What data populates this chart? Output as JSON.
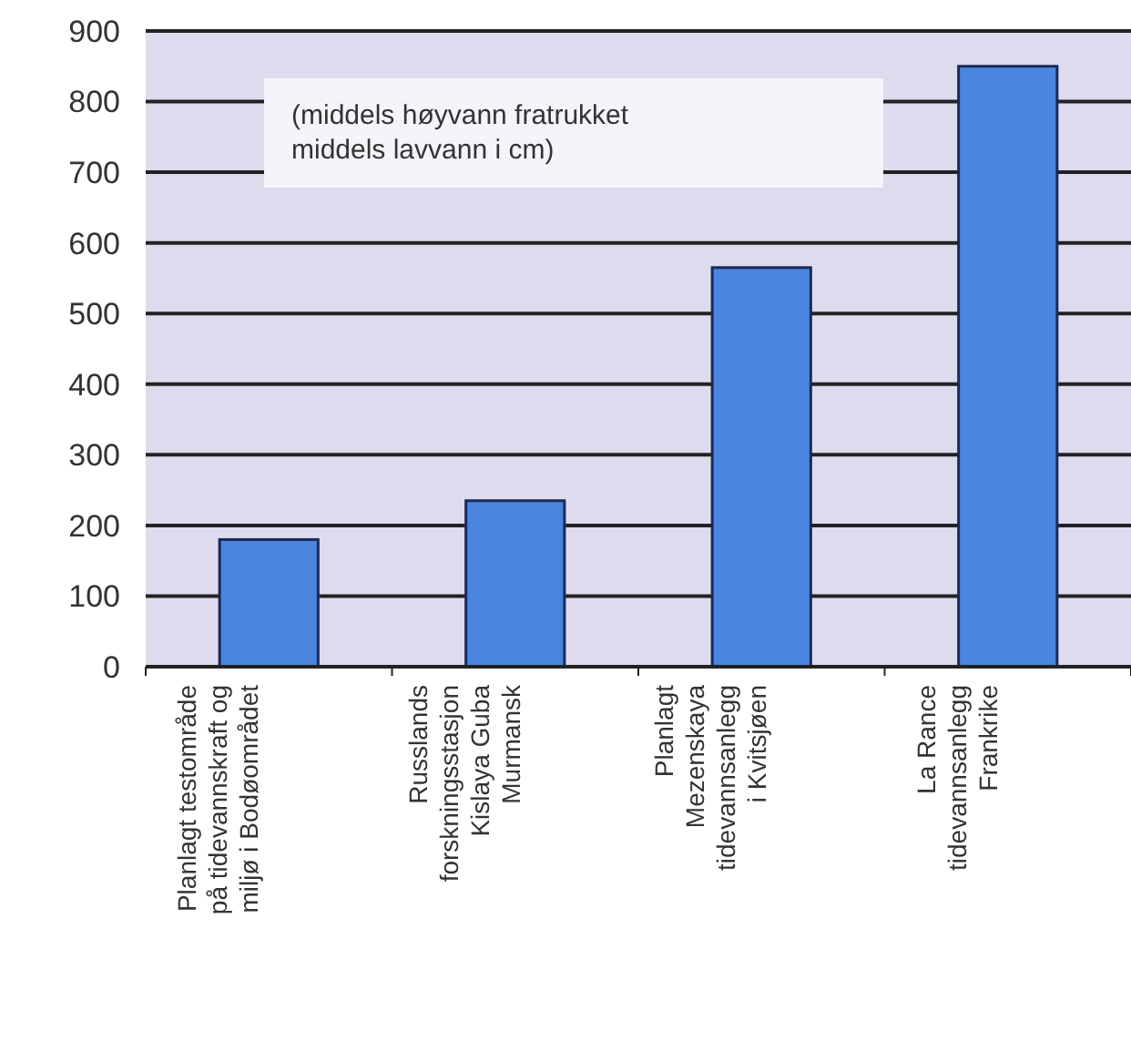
{
  "chart_data": {
    "type": "bar",
    "categories": [
      "Planlagt testområde\npå tidevannskraft og\nmiljø i Bodøområdet",
      "Russlands\nforskningsstasjon\nKislaya Guba\nMurmansk",
      "Planlagt\nMezenskaya\ntidevannsanlegg\ni Kvitsjøen",
      "La Rance\ntidevannsanlegg\nFrankrike"
    ],
    "values": [
      180,
      235,
      565,
      850
    ],
    "color": "#4a86e0",
    "ylim": [
      0,
      900
    ],
    "yticks": [
      0,
      100,
      200,
      300,
      400,
      500,
      600,
      700,
      800,
      900
    ],
    "grid": "y",
    "annotations": [
      "(middels høyvann fratrukket\nmiddels lavvann i cm)"
    ]
  }
}
